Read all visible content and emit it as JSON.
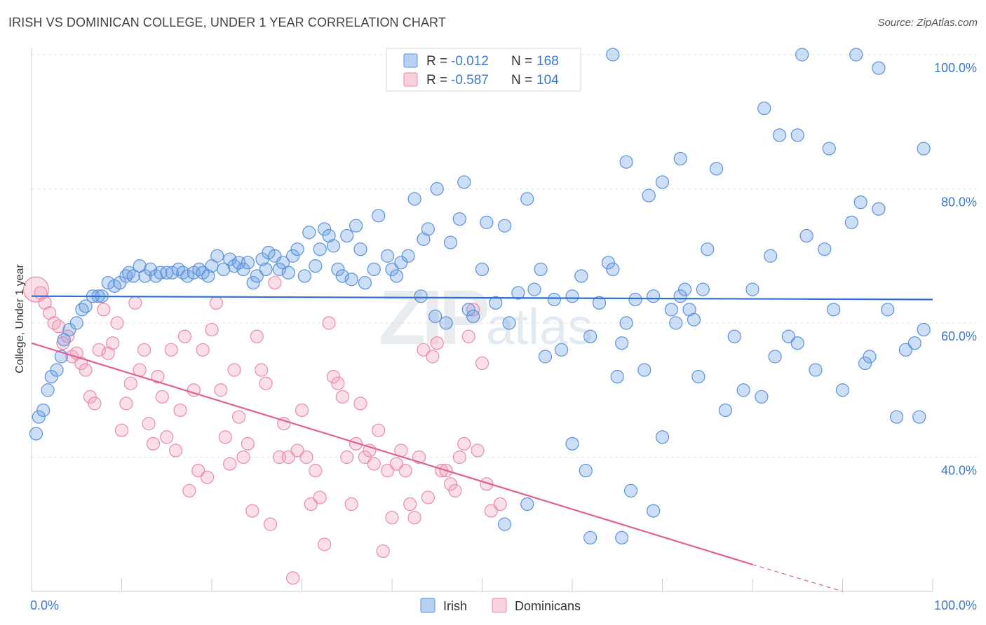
{
  "header": {
    "title": "IRISH VS DOMINICAN COLLEGE, UNDER 1 YEAR CORRELATION CHART",
    "source": "Source: ZipAtlas.com"
  },
  "watermark": {
    "zip": "ZIP",
    "atlas": "atlas"
  },
  "colors": {
    "irish": "#6fa3e6",
    "dominicans": "#f1a3bc",
    "irish_line": "#2f6fcf",
    "dom_line": "#e0608f",
    "axis_text": "#3a78d0"
  },
  "chart_data": {
    "type": "scatter",
    "title": "IRISH VS DOMINICAN COLLEGE, UNDER 1 YEAR CORRELATION CHART",
    "ylabel": "College, Under 1 year",
    "xlim": [
      0,
      100
    ],
    "ylim": [
      20,
      100
    ],
    "x_tick_labels": [
      "0.0%",
      "100.0%"
    ],
    "y_tick_labels": [
      "40.0%",
      "60.0%",
      "80.0%",
      "100.0%"
    ],
    "y_ticks": [
      40,
      60,
      80,
      100
    ],
    "grid": true,
    "legend_position": "top-center",
    "legend": [
      {
        "name": "Irish",
        "r_label": "R =",
        "r": "-0.012",
        "n_label": "N =",
        "n": "168"
      },
      {
        "name": "Dominicans",
        "r_label": "R =",
        "r": "-0.587",
        "n_label": "N =",
        "n": "104"
      }
    ],
    "series": [
      {
        "name": "Irish",
        "trend": {
          "x": [
            0,
            100
          ],
          "y": [
            64.0,
            63.5
          ]
        },
        "points": [
          [
            0.5,
            43.5
          ],
          [
            0.8,
            46
          ],
          [
            1.3,
            47
          ],
          [
            1.8,
            50
          ],
          [
            2.2,
            52
          ],
          [
            2.8,
            53
          ],
          [
            3.3,
            55
          ],
          [
            3.6,
            57.5
          ],
          [
            4.2,
            59
          ],
          [
            5,
            60
          ],
          [
            5.6,
            62
          ],
          [
            6,
            62.5
          ],
          [
            6.8,
            64
          ],
          [
            7.4,
            64
          ],
          [
            7.8,
            64
          ],
          [
            8.5,
            66
          ],
          [
            9.2,
            65.5
          ],
          [
            9.8,
            66
          ],
          [
            10.5,
            67
          ],
          [
            10.8,
            67.5
          ],
          [
            11.3,
            67
          ],
          [
            12,
            68.5
          ],
          [
            12.6,
            67
          ],
          [
            13.2,
            68
          ],
          [
            13.8,
            67
          ],
          [
            14.3,
            67.5
          ],
          [
            15,
            67.5
          ],
          [
            15.6,
            67.5
          ],
          [
            16.3,
            68
          ],
          [
            16.8,
            67.5
          ],
          [
            17.3,
            67
          ],
          [
            18,
            67.5
          ],
          [
            18.6,
            68
          ],
          [
            19,
            67.5
          ],
          [
            19.6,
            67
          ],
          [
            20,
            68.5
          ],
          [
            20.6,
            70
          ],
          [
            21.3,
            68
          ],
          [
            22,
            69.5
          ],
          [
            22.5,
            68.5
          ],
          [
            23,
            69
          ],
          [
            23.5,
            68
          ],
          [
            24,
            69
          ],
          [
            24.6,
            66
          ],
          [
            25,
            67
          ],
          [
            25.6,
            69.5
          ],
          [
            26,
            68
          ],
          [
            26.3,
            70.5
          ],
          [
            27,
            70
          ],
          [
            27.5,
            68
          ],
          [
            27.9,
            69
          ],
          [
            28.5,
            67.5
          ],
          [
            29,
            70
          ],
          [
            29.5,
            71
          ],
          [
            30.3,
            67
          ],
          [
            30.8,
            73.5
          ],
          [
            31.5,
            68.5
          ],
          [
            32,
            71
          ],
          [
            32.5,
            74
          ],
          [
            33,
            73
          ],
          [
            33.5,
            71.5
          ],
          [
            34,
            68
          ],
          [
            34.5,
            67
          ],
          [
            35,
            73
          ],
          [
            35.5,
            66.5
          ],
          [
            36,
            74.5
          ],
          [
            36.5,
            71
          ],
          [
            37,
            66
          ],
          [
            38,
            68
          ],
          [
            38.5,
            76
          ],
          [
            39.5,
            70
          ],
          [
            40,
            68
          ],
          [
            40.5,
            67
          ],
          [
            41,
            69
          ],
          [
            41.8,
            70
          ],
          [
            42.5,
            78.5
          ],
          [
            43.2,
            64
          ],
          [
            43.5,
            72.5
          ],
          [
            44,
            74
          ],
          [
            44.8,
            61
          ],
          [
            45,
            80
          ],
          [
            46,
            60
          ],
          [
            46.5,
            72
          ],
          [
            47.5,
            75.5
          ],
          [
            48,
            81
          ],
          [
            48.5,
            62
          ],
          [
            49,
            61
          ],
          [
            50,
            68
          ],
          [
            50.5,
            75
          ],
          [
            51.5,
            63
          ],
          [
            52.5,
            74.5
          ],
          [
            53,
            60
          ],
          [
            54,
            64.5
          ],
          [
            55,
            78.5
          ],
          [
            55.8,
            65
          ],
          [
            56.5,
            68
          ],
          [
            57,
            55
          ],
          [
            58,
            63.5
          ],
          [
            58.8,
            56
          ],
          [
            60,
            64
          ],
          [
            61,
            67
          ],
          [
            62,
            58
          ],
          [
            63,
            63
          ],
          [
            64,
            69
          ],
          [
            64.5,
            68
          ],
          [
            65,
            52
          ],
          [
            65.5,
            57
          ],
          [
            66,
            60
          ],
          [
            67,
            63.5
          ],
          [
            68,
            53
          ],
          [
            69,
            64
          ],
          [
            70,
            81
          ],
          [
            71,
            62
          ],
          [
            71.5,
            60
          ],
          [
            72,
            64
          ],
          [
            72.5,
            65
          ],
          [
            73,
            62
          ],
          [
            73.5,
            60.5
          ],
          [
            74,
            52
          ],
          [
            74.5,
            65
          ],
          [
            75,
            71
          ],
          [
            76,
            83
          ],
          [
            77,
            47
          ],
          [
            78,
            58
          ],
          [
            79,
            50
          ],
          [
            80,
            65
          ],
          [
            81,
            49
          ],
          [
            82,
            70
          ],
          [
            82.5,
            55
          ],
          [
            83,
            88
          ],
          [
            84,
            58
          ],
          [
            85,
            57
          ],
          [
            86,
            73
          ],
          [
            87,
            53
          ],
          [
            88,
            71
          ],
          [
            89,
            62
          ],
          [
            90,
            50
          ],
          [
            91,
            75
          ],
          [
            92,
            78
          ],
          [
            92.5,
            54
          ],
          [
            93,
            55
          ],
          [
            94,
            77
          ],
          [
            95,
            62
          ],
          [
            96,
            46
          ],
          [
            97,
            56
          ],
          [
            98,
            57
          ],
          [
            99,
            59
          ],
          [
            98.5,
            46
          ],
          [
            66,
            84
          ],
          [
            68.5,
            79
          ],
          [
            72,
            84.5
          ],
          [
            64.5,
            100
          ],
          [
            85.5,
            100
          ],
          [
            91.5,
            100
          ],
          [
            94,
            98
          ],
          [
            99,
            86
          ],
          [
            81.3,
            92
          ],
          [
            85,
            88
          ],
          [
            88.5,
            86
          ],
          [
            61.5,
            38
          ],
          [
            65.5,
            28
          ],
          [
            66.5,
            35
          ],
          [
            69,
            32
          ],
          [
            70,
            43
          ],
          [
            62,
            28
          ],
          [
            60,
            42
          ],
          [
            55,
            33
          ],
          [
            52.5,
            30
          ]
        ]
      },
      {
        "name": "Dominicans",
        "trend": {
          "x": [
            0,
            80
          ],
          "y": [
            57.0,
            24.0
          ]
        },
        "trend_dashed": {
          "x": [
            80,
            90
          ],
          "y": [
            24.0,
            20.0
          ]
        },
        "points": [
          [
            0.5,
            65
          ],
          [
            1,
            64.5
          ],
          [
            1.5,
            63
          ],
          [
            2,
            61.5
          ],
          [
            2.5,
            60
          ],
          [
            3,
            59.5
          ],
          [
            3.5,
            57
          ],
          [
            4,
            58
          ],
          [
            4.5,
            55
          ],
          [
            5,
            55.5
          ],
          [
            5.5,
            54
          ],
          [
            6,
            53
          ],
          [
            6.5,
            49
          ],
          [
            7,
            48
          ],
          [
            7.5,
            56
          ],
          [
            8,
            62
          ],
          [
            8.5,
            55.5
          ],
          [
            9,
            57
          ],
          [
            9.5,
            60
          ],
          [
            10,
            44
          ],
          [
            10.5,
            48
          ],
          [
            11,
            51
          ],
          [
            11.5,
            63
          ],
          [
            12,
            53
          ],
          [
            12.5,
            56
          ],
          [
            13,
            45
          ],
          [
            13.5,
            42
          ],
          [
            14,
            52
          ],
          [
            14.5,
            49
          ],
          [
            15,
            43
          ],
          [
            15.5,
            56
          ],
          [
            16,
            41
          ],
          [
            16.5,
            47
          ],
          [
            17,
            58
          ],
          [
            17.5,
            35
          ],
          [
            18,
            50
          ],
          [
            18.5,
            38
          ],
          [
            19,
            56
          ],
          [
            19.5,
            37
          ],
          [
            20,
            59
          ],
          [
            20.5,
            63
          ],
          [
            21,
            50
          ],
          [
            21.5,
            43
          ],
          [
            22,
            39
          ],
          [
            22.5,
            53
          ],
          [
            23,
            46
          ],
          [
            23.5,
            40
          ],
          [
            24,
            42
          ],
          [
            24.5,
            32
          ],
          [
            25,
            58
          ],
          [
            25.5,
            53
          ],
          [
            26,
            51
          ],
          [
            26.5,
            30
          ],
          [
            27,
            66
          ],
          [
            27.5,
            40
          ],
          [
            28,
            45
          ],
          [
            28.5,
            40
          ],
          [
            29,
            22
          ],
          [
            29.5,
            41
          ],
          [
            30,
            47
          ],
          [
            30.5,
            40
          ],
          [
            31,
            33
          ],
          [
            31.5,
            38
          ],
          [
            32,
            34
          ],
          [
            32.5,
            27
          ],
          [
            33,
            60
          ],
          [
            33.5,
            52
          ],
          [
            34,
            51
          ],
          [
            34.5,
            49
          ],
          [
            35,
            40
          ],
          [
            35.5,
            33
          ],
          [
            36,
            42
          ],
          [
            36.5,
            48
          ],
          [
            37,
            40
          ],
          [
            37.5,
            41
          ],
          [
            38,
            39
          ],
          [
            38.5,
            44
          ],
          [
            39,
            26
          ],
          [
            39.5,
            38
          ],
          [
            40,
            31
          ],
          [
            40.5,
            39
          ],
          [
            41,
            41
          ],
          [
            41.5,
            38
          ],
          [
            42,
            33
          ],
          [
            42.5,
            31
          ],
          [
            43,
            40
          ],
          [
            43.5,
            56
          ],
          [
            44,
            34
          ],
          [
            44.5,
            55
          ],
          [
            45,
            57
          ],
          [
            45.5,
            38
          ],
          [
            46,
            38
          ],
          [
            46.5,
            36
          ],
          [
            47,
            35
          ],
          [
            47.5,
            40
          ],
          [
            48,
            42
          ],
          [
            48.5,
            58
          ],
          [
            49,
            62
          ],
          [
            49.5,
            41
          ],
          [
            50,
            54
          ],
          [
            50.5,
            36
          ],
          [
            51,
            32
          ],
          [
            52,
            33
          ]
        ]
      }
    ]
  }
}
